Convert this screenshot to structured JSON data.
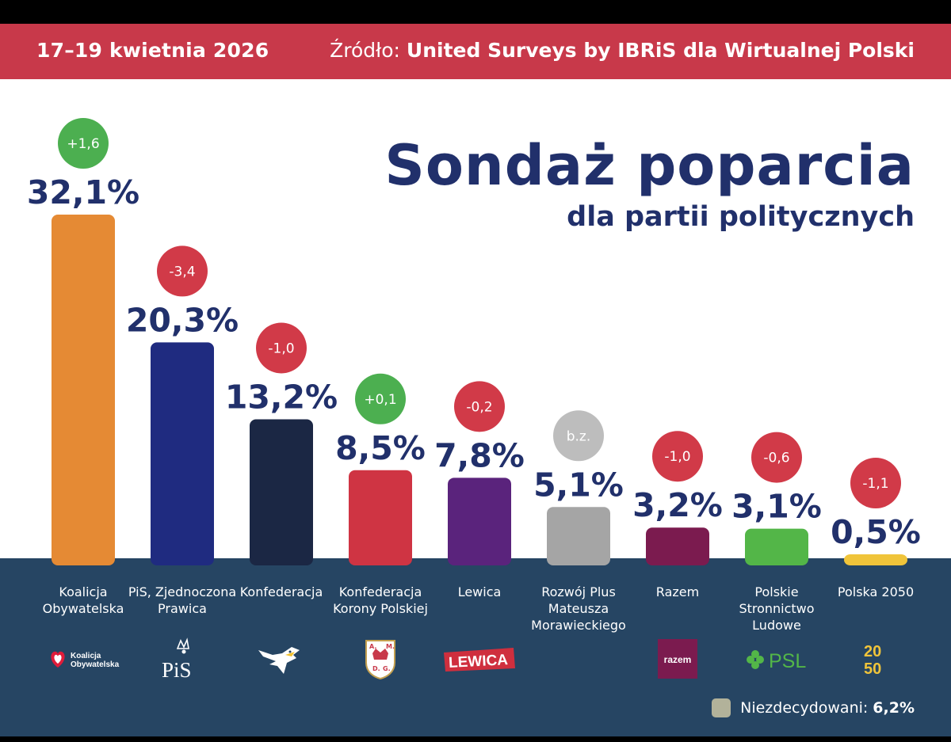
{
  "header": {
    "date": "17–19 kwietnia 2026",
    "source_prefix": "Źródło:",
    "source_name": "United Surveys by IBRiS dla Wirtualnej Polski"
  },
  "title": "Sondaż poparcia",
  "subtitle": "dla partii politycznych",
  "colors": {
    "positive_badge": "#4caf50",
    "negative_badge": "#d13a48",
    "neutral_badge": "#bdbdbd"
  },
  "chart_data": {
    "type": "bar",
    "title": "Sondaż poparcia dla partii politycznych",
    "unit": "%",
    "ylim": [
      0,
      32.1
    ],
    "categories": [
      "Koalicja Obywatelska",
      "PiS, Zjednoczona Prawica",
      "Konfederacja",
      "Konfederacja Korony Polskiej",
      "Lewica",
      "Rozwój Plus Mateusza Morawieckiego",
      "Razem",
      "Polskie Stronnictwo Ludowe",
      "Polska 2050"
    ],
    "bars": [
      {
        "name": "Koalicja Obywatelska",
        "label_lines": [
          "Koalicja",
          "Obywatelska"
        ],
        "value": 32.1,
        "value_label": "32,1%",
        "change": "+1,6",
        "change_type": "positive",
        "color": "#e58a34"
      },
      {
        "name": "PiS, Zjednoczona Prawica",
        "label_lines": [
          "PiS, Zjednoczona",
          "Prawica"
        ],
        "value": 20.3,
        "value_label": "20,3%",
        "change": "-3,4",
        "change_type": "negative",
        "color": "#1f2b80"
      },
      {
        "name": "Konfederacja",
        "label_lines": [
          "Konfederacja"
        ],
        "value": 13.2,
        "value_label": "13,2%",
        "change": "-1,0",
        "change_type": "negative",
        "color": "#1b2744"
      },
      {
        "name": "Konfederacja Korony Polskiej",
        "label_lines": [
          "Konfederacja",
          "Korony Polskiej"
        ],
        "value": 8.5,
        "value_label": "8,5%",
        "change": "+0,1",
        "change_type": "positive",
        "color": "#cf3443"
      },
      {
        "name": "Lewica",
        "label_lines": [
          "Lewica"
        ],
        "value": 7.8,
        "value_label": "7,8%",
        "change": "-0,2",
        "change_type": "negative",
        "color": "#5a237c"
      },
      {
        "name": "Rozwój Plus Mateusza Morawieckiego",
        "label_lines": [
          "Rozwój Plus",
          "Mateusza",
          "Morawieckiego"
        ],
        "value": 5.1,
        "value_label": "5,1%",
        "change": "b.z.",
        "change_type": "neutral",
        "color": "#a5a5a5"
      },
      {
        "name": "Razem",
        "label_lines": [
          "Razem"
        ],
        "value": 3.2,
        "value_label": "3,2%",
        "change": "-1,0",
        "change_type": "negative",
        "color": "#7b1b4f"
      },
      {
        "name": "Polskie Stronnictwo Ludowe",
        "label_lines": [
          "Polskie",
          "Stronnictwo",
          "Ludowe"
        ],
        "value": 3.1,
        "value_label": "3,1%",
        "change": "-0,6",
        "change_type": "negative",
        "color": "#53b648"
      },
      {
        "name": "Polska 2050",
        "label_lines": [
          "Polska 2050"
        ],
        "value": 0.5,
        "value_label": "0,5%",
        "change": "-1,1",
        "change_type": "negative",
        "color": "#f0c43a"
      }
    ],
    "undecided": {
      "label": "Niezdecydowani:",
      "value": 6.2,
      "value_label": "6,2%",
      "color": "#b2b29a"
    }
  },
  "logos": {
    "ko": [
      "Koalicja",
      "Obywatelska"
    ],
    "pis": "PiS",
    "kkp": [
      "A.",
      "M.",
      "D.",
      "G."
    ],
    "lewica": "LEWICA",
    "razem": "razem",
    "psl": "PSL",
    "p2050": [
      "20",
      "50"
    ]
  }
}
